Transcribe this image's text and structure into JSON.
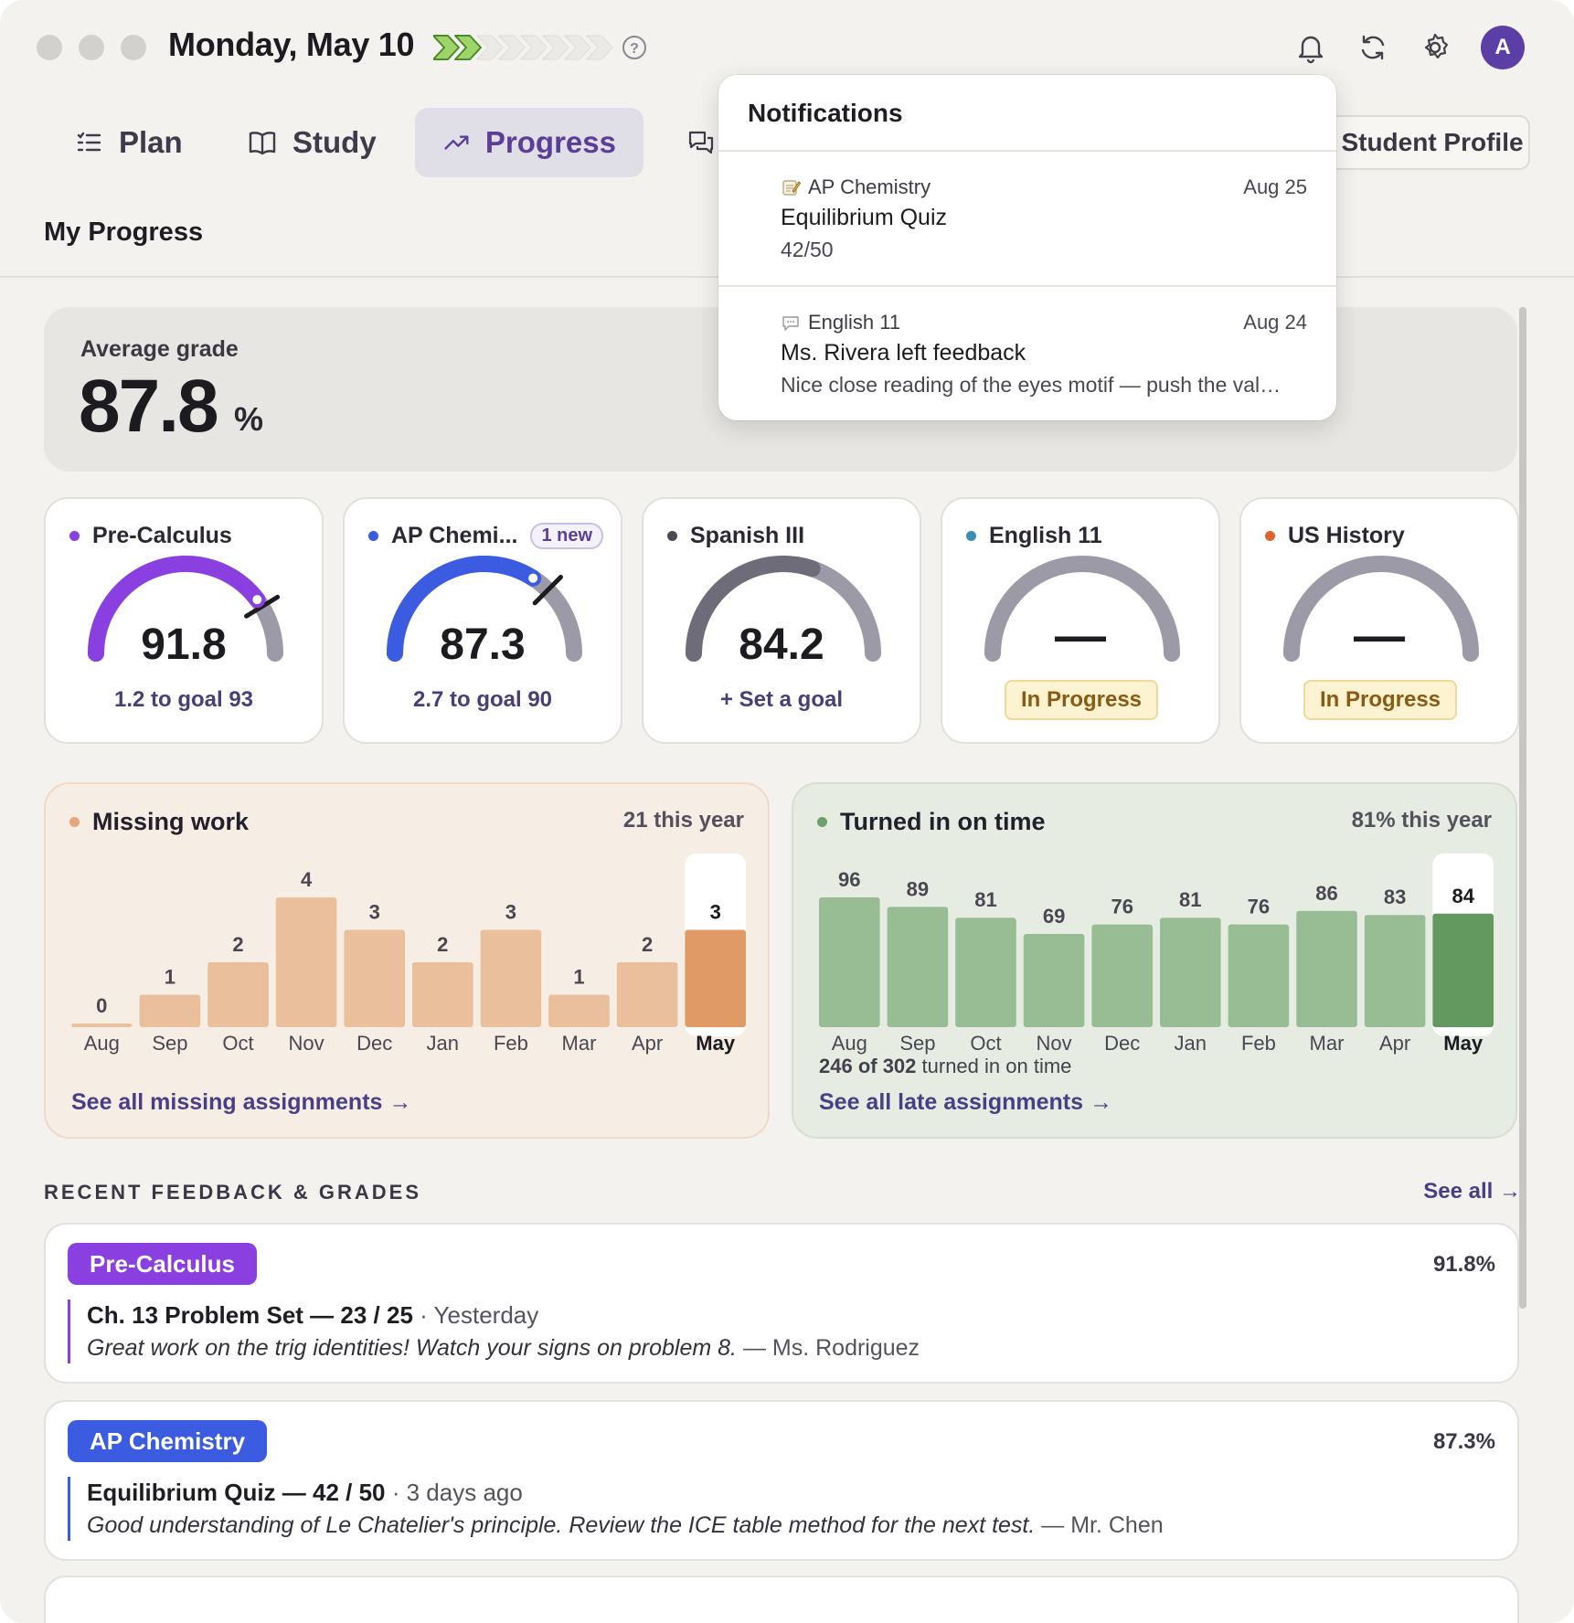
{
  "header": {
    "date": "Monday, May 10",
    "streak": {
      "filled": 2,
      "total": 8
    },
    "avatar_initial": "A"
  },
  "nav": {
    "tabs": [
      {
        "label": "Plan",
        "icon": "list-icon"
      },
      {
        "label": "Study",
        "icon": "book-icon"
      },
      {
        "label": "Progress",
        "icon": "trending-up-icon",
        "active": true
      },
      {
        "label": "",
        "icon": "chat-icon"
      }
    ],
    "student_profile": "Student Profile"
  },
  "section_title": "My Progress",
  "average": {
    "label": "Average grade",
    "value": "87.8",
    "unit": "%"
  },
  "courses": [
    {
      "name": "Pre-Calculus",
      "color": "#8a3fe0",
      "value": "91.8",
      "score": 91.8,
      "goal": 93,
      "footer": "1.2 to goal 93"
    },
    {
      "name": "AP Chemi...",
      "color": "#3b5ce0",
      "badge": "1 new",
      "value": "87.3",
      "score": 87.3,
      "goal": 90,
      "footer": "2.7 to goal 90"
    },
    {
      "name": "Spanish III",
      "color": "#4b4a55",
      "value": "84.2",
      "score": 84.2,
      "footer": "+ Set a goal"
    },
    {
      "name": "English 11",
      "color": "#3d8fb0",
      "value": "—",
      "status": "In Progress"
    },
    {
      "name": "US History",
      "color": "#e0642e",
      "value": "—",
      "status": "In Progress"
    }
  ],
  "missing_work": {
    "title": "Missing work",
    "summary": "21 this year",
    "link": "See all missing assignments →",
    "color": "#e8a47a"
  },
  "turned_in": {
    "title": "Turned in on time",
    "summary": "81% this year",
    "note_bold": "246 of 302",
    "note_rest": " turned in on time",
    "link": "See all late assignments →",
    "color": "#6ba36a"
  },
  "chart_data": [
    {
      "type": "bar",
      "title": "Missing work",
      "categories": [
        "Aug",
        "Sep",
        "Oct",
        "Nov",
        "Dec",
        "Jan",
        "Feb",
        "Mar",
        "Apr",
        "May"
      ],
      "values": [
        0,
        1,
        2,
        4,
        3,
        2,
        3,
        1,
        2,
        3
      ],
      "highlight": "May",
      "ylim": [
        0,
        4
      ]
    },
    {
      "type": "bar",
      "title": "Turned in on time",
      "categories": [
        "Aug",
        "Sep",
        "Oct",
        "Nov",
        "Dec",
        "Jan",
        "Feb",
        "Mar",
        "Apr",
        "May"
      ],
      "values": [
        96,
        89,
        81,
        69,
        76,
        81,
        76,
        86,
        83,
        84
      ],
      "highlight": "May"
    }
  ],
  "feedback": {
    "header": "RECENT FEEDBACK & GRADES",
    "see_all": "See all →",
    "items": [
      {
        "course": "Pre-Calculus",
        "color": "#8a3fe0",
        "grade": "91.8%",
        "title": "Ch. 13 Problem Set — 23 / 25",
        "when": " · Yesterday",
        "comment": "Great work on the trig identities! Watch your signs on problem 8.",
        "author": " — Ms. Rodriguez"
      },
      {
        "course": "AP Chemistry",
        "color": "#3b5ce0",
        "grade": "87.3%",
        "title": "Equilibrium Quiz — 42 / 50",
        "when": " · 3 days ago",
        "comment": "Good understanding of Le Chatelier's principle. Review the ICE table method for the next test.",
        "author": " — Mr. Chen"
      }
    ]
  },
  "notifications": {
    "title": "Notifications",
    "items": [
      {
        "source": "AP Chemistry",
        "icon": "memo-icon",
        "date": "Aug 25",
        "headline": "Equilibrium Quiz",
        "detail": "42/50"
      },
      {
        "source": "English 11",
        "icon": "speech-bubble-icon",
        "date": "Aug 24",
        "headline": "Ms. Rivera left feedback",
        "detail": "Nice close reading of the eyes motif — push the val…"
      }
    ]
  }
}
